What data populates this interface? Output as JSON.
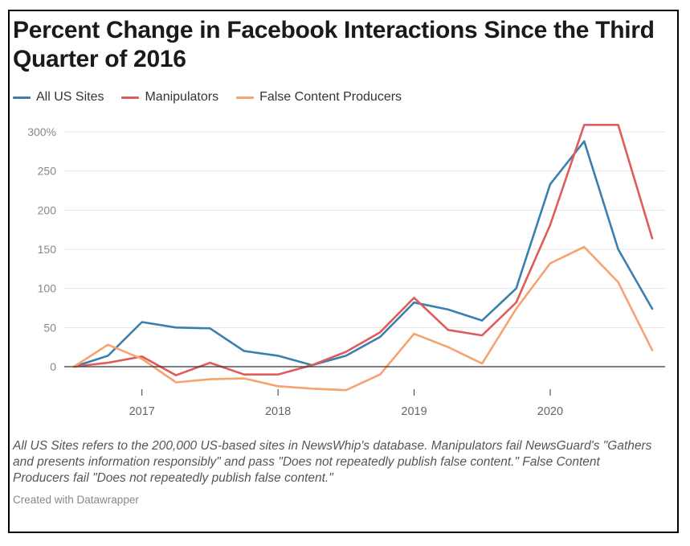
{
  "colors": {
    "all_us_sites": "#3b7fae",
    "manipulators": "#e05b5b",
    "false_content": "#f5a36f",
    "grid": "#e6e6e6",
    "zero_line": "#333333"
  },
  "note": "All US Sites refers to the 200,000 US-based sites in NewsWhip's database. Manipulators fail NewsGuard's \"Gathers and presents information responsibly\" and pass \"Does not repeatedly publish false content.\" False Content Producers fail \"Does not repeatedly publish false content.\"",
  "credit": "Created with Datawrapper",
  "chart_data": {
    "type": "line",
    "title": "Percent Change in Facebook Interactions Since the Third Quarter of 2016",
    "xlabel": "",
    "ylabel": "",
    "ylim": [
      -30,
      310
    ],
    "yticks": [
      0,
      50,
      100,
      150,
      200,
      250,
      300
    ],
    "ytick_labels": [
      "0",
      "50",
      "100",
      "150",
      "200",
      "250",
      "300%"
    ],
    "xlim": [
      2016.5,
      2020.75
    ],
    "xticks": [
      2017,
      2018,
      2019,
      2020
    ],
    "xtick_labels": [
      "2017",
      "2018",
      "2019",
      "2020"
    ],
    "grid": true,
    "legend_position": "top-left",
    "x": [
      2016.5,
      2016.75,
      2017.0,
      2017.25,
      2017.5,
      2017.75,
      2018.0,
      2018.25,
      2018.5,
      2018.75,
      2019.0,
      2019.25,
      2019.5,
      2019.75,
      2020.0,
      2020.25,
      2020.5,
      2020.75
    ],
    "series": [
      {
        "name": "All US Sites",
        "color_key": "all_us_sites",
        "values": [
          0,
          14,
          57,
          50,
          49,
          20,
          14,
          2,
          14,
          38,
          82,
          73,
          59,
          100,
          233,
          288,
          150,
          74
        ]
      },
      {
        "name": "Manipulators",
        "color_key": "manipulators",
        "values": [
          0,
          5,
          13,
          -11,
          5,
          -10,
          -10,
          2,
          19,
          44,
          88,
          47,
          40,
          82,
          181,
          309,
          309,
          164
        ]
      },
      {
        "name": "False Content Producers",
        "color_key": "false_content",
        "values": [
          0,
          28,
          10,
          -20,
          -16,
          -15,
          -25,
          -28,
          -30,
          -10,
          42,
          25,
          4,
          74,
          132,
          153,
          108,
          21
        ]
      }
    ]
  }
}
